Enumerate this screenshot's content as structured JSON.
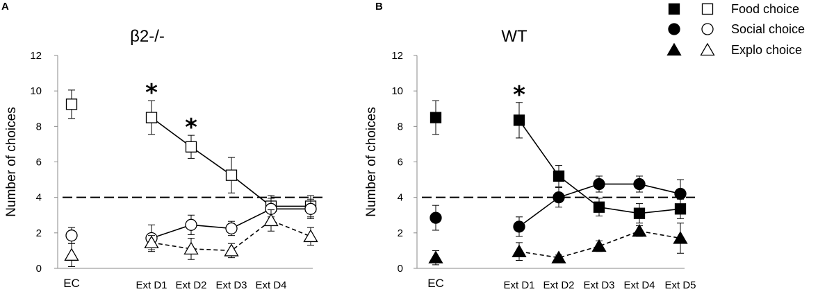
{
  "chart_data": [
    {
      "type": "line",
      "panel": "A",
      "title": "β2-/-",
      "ylabel": "Number of choices",
      "xlabel": "",
      "ylim": [
        0,
        12
      ],
      "yticks": [
        0,
        2,
        4,
        6,
        8,
        10,
        12
      ],
      "categories": [
        "EC",
        "",
        "Ext D1",
        "Ext D2",
        "Ext D3",
        "Ext D4",
        ""
      ],
      "filled": false,
      "reference_line": 4,
      "series": [
        {
          "name": "Food choice",
          "marker": "square",
          "style": "solid",
          "points": [
            {
              "x": 0,
              "y": 9.25,
              "err": 0.8
            },
            {
              "x": 2,
              "y": 8.5,
              "err": 0.95
            },
            {
              "x": 3,
              "y": 6.85,
              "err": 0.65
            },
            {
              "x": 4,
              "y": 5.25,
              "err": 1.0
            },
            {
              "x": 5,
              "y": 3.5,
              "err": 0.6
            },
            {
              "x": 6,
              "y": 3.5,
              "err": 0.6
            }
          ]
        },
        {
          "name": "Social choice",
          "marker": "circle",
          "style": "solid",
          "points": [
            {
              "x": 0,
              "y": 1.85,
              "err": 0.45
            },
            {
              "x": 2,
              "y": 1.7,
              "err": 0.75
            },
            {
              "x": 3,
              "y": 2.45,
              "err": 0.55
            },
            {
              "x": 4,
              "y": 2.25,
              "err": 0.4
            },
            {
              "x": 5,
              "y": 3.35,
              "err": 0.6
            },
            {
              "x": 6,
              "y": 3.35,
              "err": 0.55
            }
          ]
        },
        {
          "name": "Explo choice",
          "marker": "triangle",
          "style": "dashed",
          "points": [
            {
              "x": 0,
              "y": 0.75,
              "err": 0.65
            },
            {
              "x": 2,
              "y": 1.45,
              "err": 0.4
            },
            {
              "x": 3,
              "y": 1.1,
              "err": 0.6
            },
            {
              "x": 4,
              "y": 1.0,
              "err": 0.4
            },
            {
              "x": 5,
              "y": 2.7,
              "err": 0.6
            },
            {
              "x": 6,
              "y": 1.8,
              "err": 0.5
            }
          ]
        }
      ],
      "significance": [
        {
          "x": 2,
          "label": "*"
        },
        {
          "x": 3,
          "label": "*"
        }
      ]
    },
    {
      "type": "line",
      "panel": "B",
      "title": "WT",
      "ylabel": "Number of choices",
      "xlabel": "",
      "ylim": [
        0,
        12
      ],
      "yticks": [
        0,
        2,
        4,
        6,
        8,
        10,
        12
      ],
      "categories": [
        "EC",
        "",
        "Ext D1",
        "Ext D2",
        "Ext D3",
        "Ext D4",
        "Ext D5"
      ],
      "filled": true,
      "reference_line": 4,
      "series": [
        {
          "name": "Food choice",
          "marker": "square",
          "style": "solid",
          "points": [
            {
              "x": 0,
              "y": 8.5,
              "err": 0.95
            },
            {
              "x": 2,
              "y": 8.35,
              "err": 1.0
            },
            {
              "x": 3,
              "y": 5.2,
              "err": 0.6
            },
            {
              "x": 4,
              "y": 3.45,
              "err": 0.5
            },
            {
              "x": 5,
              "y": 3.1,
              "err": 0.55
            },
            {
              "x": 6,
              "y": 3.35,
              "err": 0.55
            }
          ]
        },
        {
          "name": "Social choice",
          "marker": "circle",
          "style": "solid",
          "points": [
            {
              "x": 0,
              "y": 2.85,
              "err": 0.7
            },
            {
              "x": 2,
              "y": 2.35,
              "err": 0.55
            },
            {
              "x": 3,
              "y": 4.0,
              "err": 0.55
            },
            {
              "x": 4,
              "y": 4.75,
              "err": 0.45
            },
            {
              "x": 5,
              "y": 4.75,
              "err": 0.45
            },
            {
              "x": 6,
              "y": 4.2,
              "err": 0.8
            }
          ]
        },
        {
          "name": "Explo choice",
          "marker": "triangle",
          "style": "dashed",
          "points": [
            {
              "x": 0,
              "y": 0.6,
              "err": 0.4
            },
            {
              "x": 2,
              "y": 0.95,
              "err": 0.5
            },
            {
              "x": 3,
              "y": 0.6,
              "err": 0.15
            },
            {
              "x": 4,
              "y": 1.25,
              "err": 0.3
            },
            {
              "x": 5,
              "y": 2.1,
              "err": 0.3
            },
            {
              "x": 6,
              "y": 1.7,
              "err": 0.85
            }
          ]
        }
      ],
      "significance": [
        {
          "x": 2,
          "label": "*"
        }
      ]
    }
  ],
  "legend": {
    "placement": "top-right",
    "entries": [
      {
        "label": "Food choice",
        "marker": "square"
      },
      {
        "label": "Social choice",
        "marker": "circle"
      },
      {
        "label": "Explo choice",
        "marker": "triangle"
      }
    ]
  },
  "colors": {
    "ink": "#000000",
    "background": "#ffffff"
  }
}
